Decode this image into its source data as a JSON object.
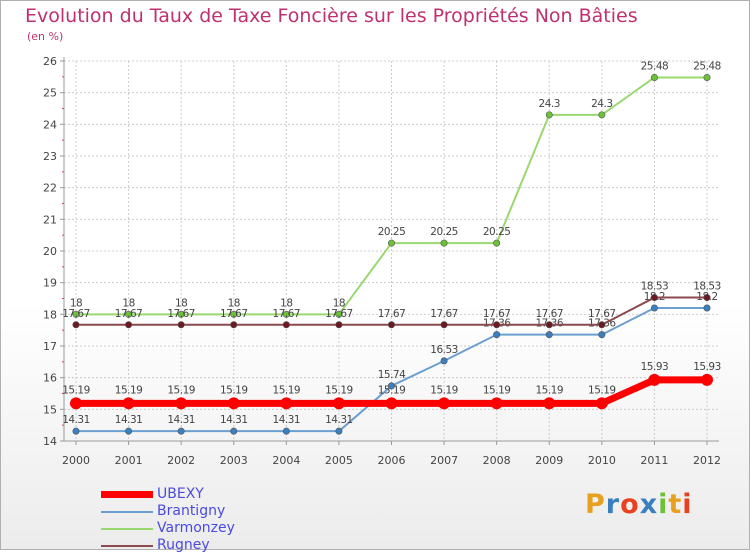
{
  "chart_data": {
    "type": "line",
    "title": "Evolution du Taux de Taxe Foncière sur les Propriétés Non Bâties",
    "subtitle": "(en %)",
    "categories": [
      "2000",
      "2001",
      "2002",
      "2003",
      "2004",
      "2005",
      "2006",
      "2007",
      "2008",
      "2009",
      "2010",
      "2011",
      "2012"
    ],
    "ylim": [
      14,
      26
    ],
    "yticks": [
      "14",
      "15",
      "16",
      "17",
      "18",
      "19",
      "20",
      "21",
      "22",
      "23",
      "24",
      "25",
      "26"
    ],
    "series": [
      {
        "name": "Brantigny",
        "color": "#6a9fd0",
        "marker": "#3a7fc0",
        "values": [
          14.31,
          14.31,
          14.31,
          14.31,
          14.31,
          14.31,
          15.74,
          16.53,
          17.36,
          17.36,
          17.36,
          18.2,
          18.2
        ],
        "labels": [
          "14.31",
          "14.31",
          "14.31",
          "14.31",
          "14.31",
          "14.31",
          "15.74",
          "16.53",
          "17.36",
          "17.36",
          "17.36",
          "18.2",
          "18.2"
        ]
      },
      {
        "name": "Varmonzey",
        "color": "#9ad870",
        "marker": "#6cc03a",
        "values": [
          18,
          18,
          18,
          18,
          18,
          18,
          20.25,
          20.25,
          20.25,
          24.3,
          24.3,
          25.48,
          25.48
        ],
        "labels": [
          "18",
          "18",
          "18",
          "18",
          "18",
          "18",
          "20.25",
          "20.25",
          "20.25",
          "24.3",
          "24.3",
          "25.48",
          "25.48"
        ]
      },
      {
        "name": "Rugney",
        "color": "#8a4a50",
        "marker": "#6a1a20",
        "values": [
          17.67,
          17.67,
          17.67,
          17.67,
          17.67,
          17.67,
          17.67,
          17.67,
          17.67,
          17.67,
          17.67,
          18.53,
          18.53
        ],
        "labels": [
          "17.67",
          "17.67",
          "17.67",
          "17.67",
          "17.67",
          "17.67",
          "17.67",
          "17.67",
          "17.67",
          "17.67",
          "17.67",
          "18.53",
          "18.53"
        ]
      },
      {
        "name": "UBEXY",
        "color": "#ff0000",
        "marker": "#ff0000",
        "values": [
          15.19,
          15.19,
          15.19,
          15.19,
          15.19,
          15.19,
          15.19,
          15.19,
          15.19,
          15.19,
          15.19,
          15.93,
          15.93
        ],
        "labels": [
          "15.19",
          "15.19",
          "15.19",
          "15.19",
          "15.19",
          "15.19",
          "15.19",
          "15.19",
          "15.19",
          "15.19",
          "15.19",
          "15.93",
          "15.93"
        ]
      }
    ],
    "legend_order": [
      "UBEXY",
      "Brantigny",
      "Varmonzey",
      "Rugney"
    ],
    "legend_position": "bottom-left"
  },
  "legend": {
    "ubexy": "UBEXY",
    "brantigny": "Brantigny",
    "varmonzey": "Varmonzey",
    "rugney": "Rugney"
  },
  "logo": {
    "text": "Proxiti",
    "colors": [
      "#e8a020",
      "#3a7fc0",
      "#e84020",
      "#3a7fc0",
      "#6cc03a",
      "#e8a020",
      "#e84020"
    ]
  }
}
